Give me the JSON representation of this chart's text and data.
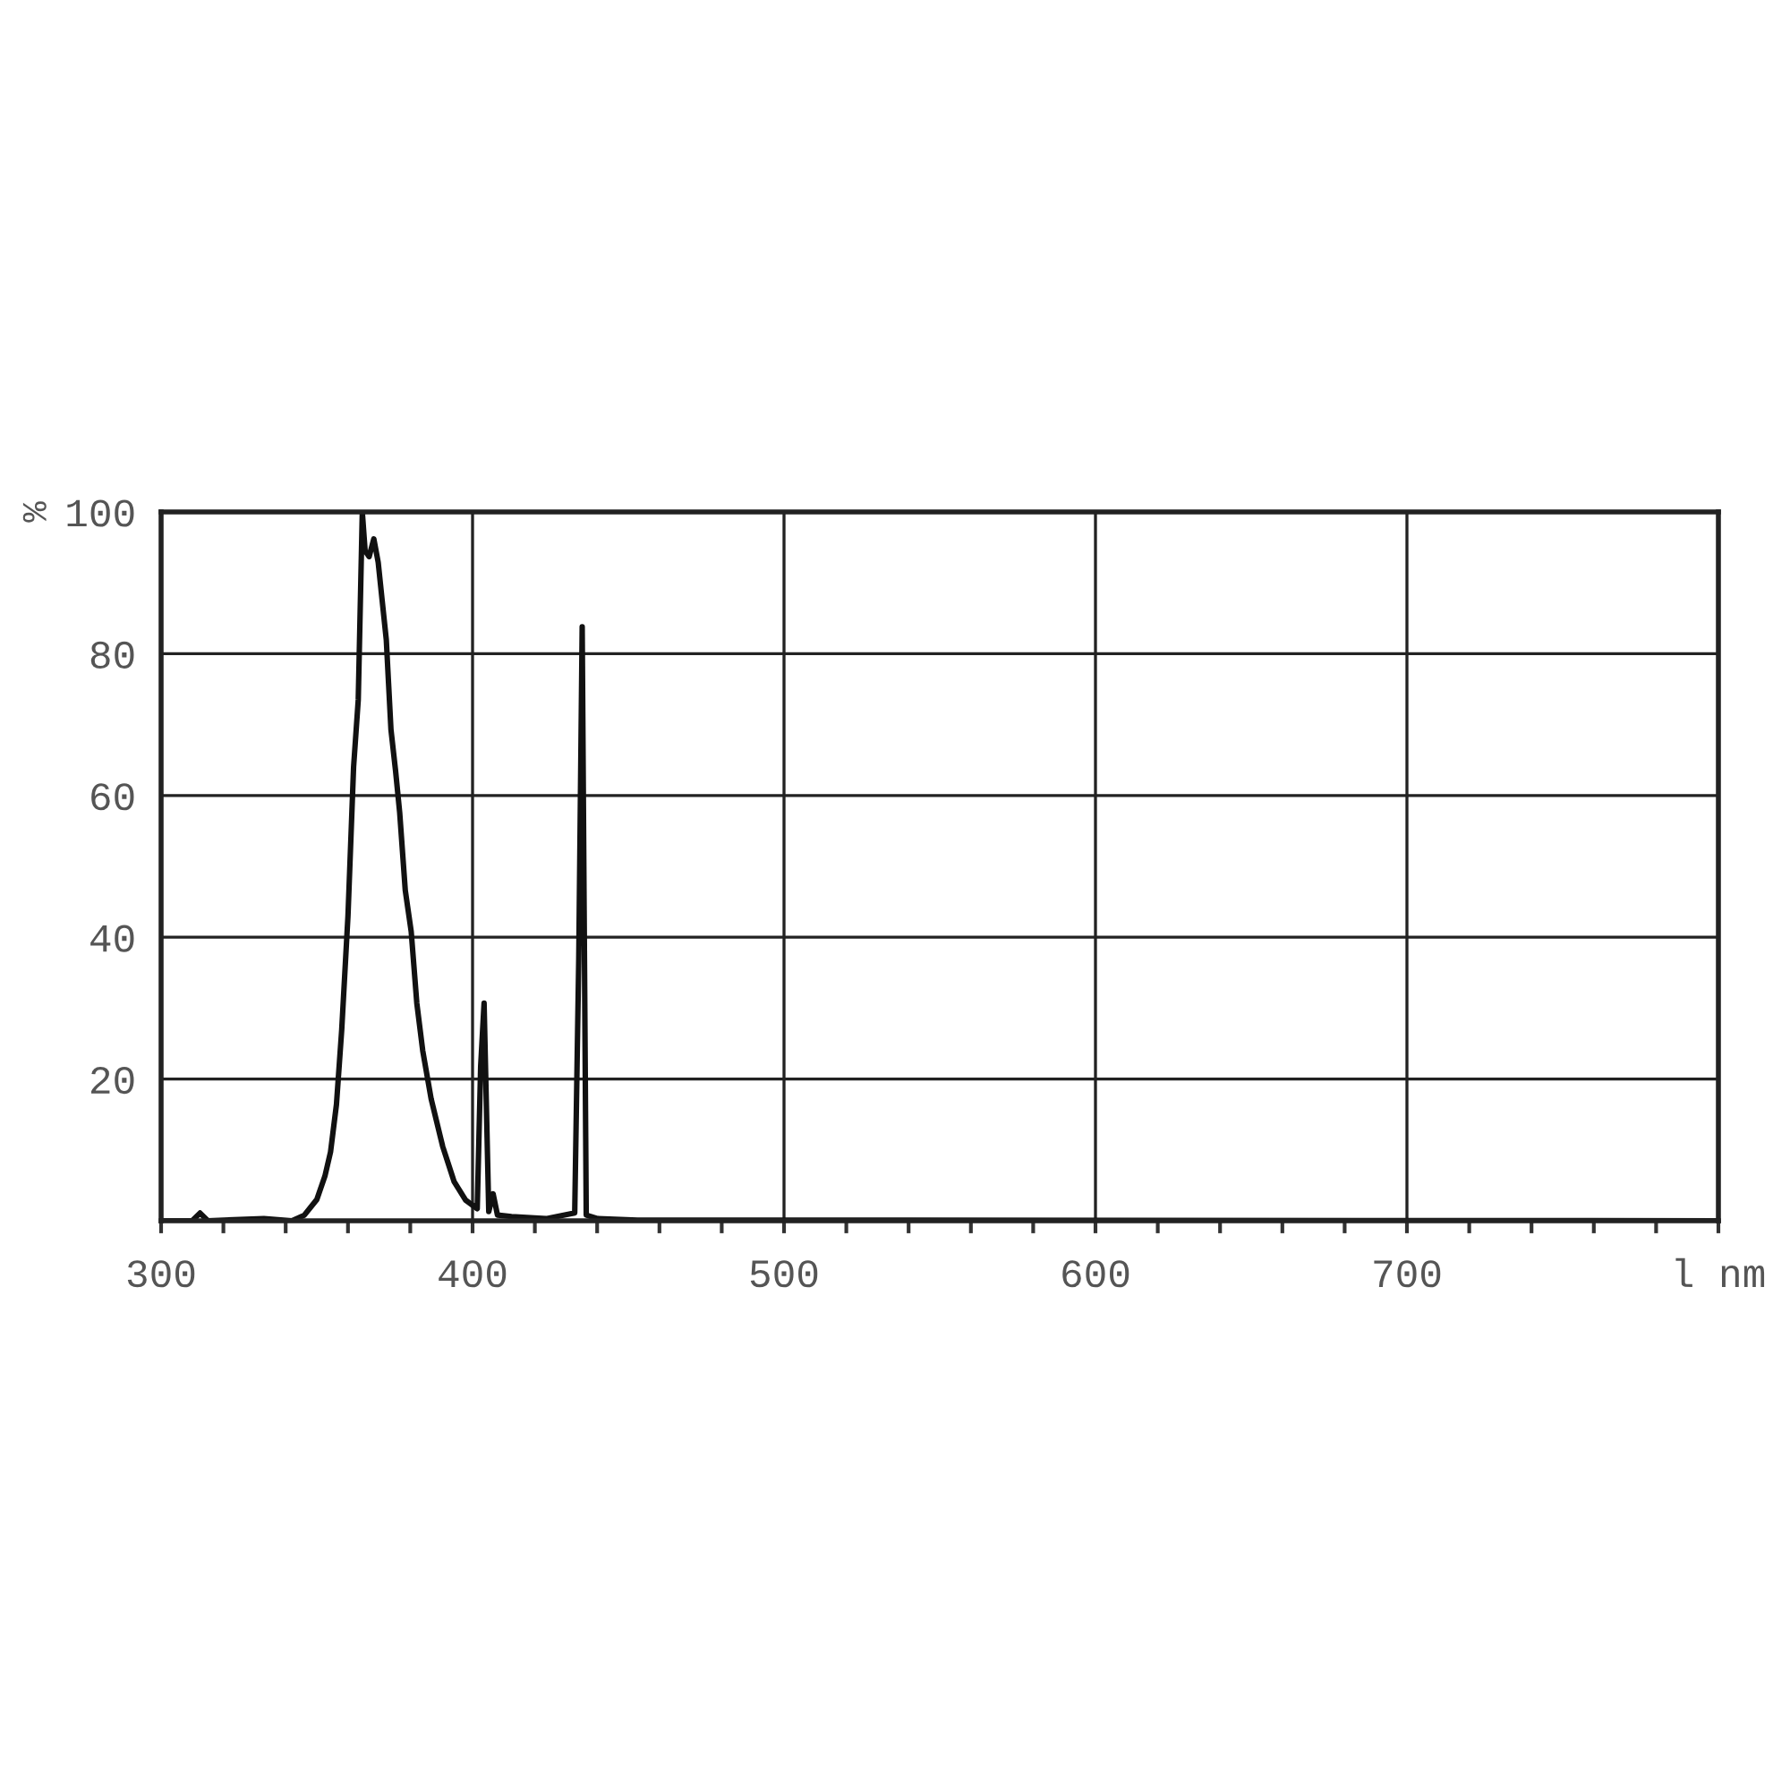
{
  "chart_data": {
    "type": "line",
    "ylabel": "%",
    "x": [
      300,
      310,
      312.5,
      315,
      333,
      342,
      346,
      350,
      352.6,
      354.4,
      356.3,
      358,
      360,
      361.8,
      363.3,
      364.6,
      365.5,
      366.8,
      368.3,
      369.7,
      371,
      372.3,
      373.8,
      375.3,
      376.6,
      378.4,
      380.3,
      382.1,
      384,
      386.7,
      390.4,
      394.1,
      397.8,
      401.5,
      402.6,
      403.7,
      405.2,
      406.6,
      408,
      412.5,
      423.6,
      432.8,
      434.1,
      435.2,
      436.5,
      440.2,
      453,
      800
    ],
    "series": [
      {
        "color": "#111111",
        "values": [
          0,
          0,
          1.1,
          0,
          0.3,
          0,
          0.8,
          3,
          6.3,
          9.7,
          16.4,
          27,
          43,
          64,
          73.5,
          100,
          94.5,
          93.7,
          96.2,
          92.9,
          87.4,
          82,
          69.3,
          63.4,
          57.6,
          46.6,
          40.8,
          30.7,
          24,
          17.2,
          10.5,
          5.5,
          2.9,
          1.7,
          21.8,
          30.7,
          1.3,
          3.8,
          0.8,
          0.6,
          0.3,
          1.1,
          37,
          83.8,
          0.8,
          0.3,
          0.1,
          0
        ]
      }
    ],
    "xlim": [
      300,
      800
    ],
    "ylim": [
      0,
      100
    ],
    "xticks": [
      300,
      400,
      500,
      600,
      700,
      {
        "value": 800,
        "label": "l nm"
      }
    ],
    "yticks": [
      {
        "value": 0,
        "label": null
      },
      20,
      40,
      60,
      80,
      100
    ],
    "grid": true,
    "legend": false,
    "marker": "none",
    "line_style": "solid"
  }
}
